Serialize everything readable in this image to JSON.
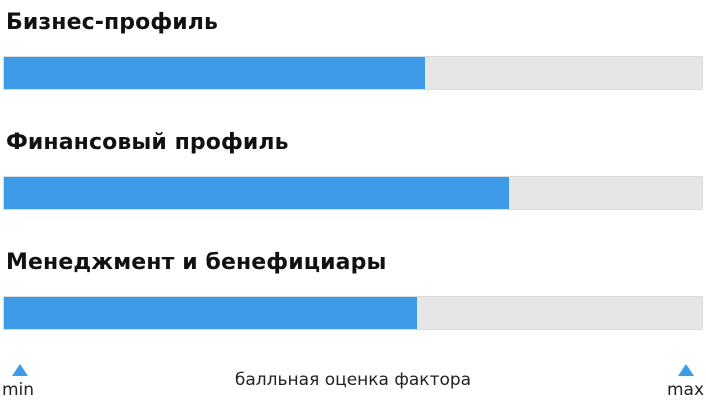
{
  "chart_data": {
    "type": "bar",
    "orientation": "horizontal",
    "categories": [
      "Бизнес-профиль",
      "Финансовый профиль",
      "Менеджмент и бенефициары"
    ],
    "values": [
      60.3,
      72.3,
      59.1
    ],
    "value_unit": "percent of max",
    "xlabel": "балльная оценка фактора",
    "axis_min_label": "min",
    "axis_max_label": "max",
    "colors": {
      "fill": "#3d9be9",
      "track": "#e6e6e6",
      "marker": "#3d9be9"
    }
  }
}
